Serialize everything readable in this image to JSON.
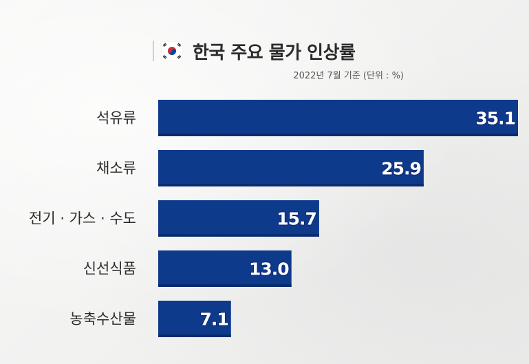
{
  "header": {
    "title": "한국 주요 물가 인상률",
    "subtitle": "2022년 7월 기준 (단위 : %)",
    "flag_icon": "korea-flag-icon"
  },
  "colors": {
    "bar": "#0e3a8c",
    "bar_shade": "#0a2c6e",
    "background": "#f3f3f2"
  },
  "chart_data": {
    "type": "bar",
    "orientation": "horizontal",
    "title": "한국 주요 물가 인상률",
    "subtitle": "2022년 7월 기준 (단위 : %)",
    "categories": [
      "석유류",
      "채소류",
      "전기 · 가스 · 수도",
      "신선식품",
      "농축수산물"
    ],
    "values": [
      35.1,
      25.9,
      15.7,
      13.0,
      7.1
    ],
    "value_labels": [
      "35.1",
      "25.9",
      "15.7",
      "13.0",
      "7.1"
    ],
    "xlim": [
      0,
      35.1
    ],
    "grid": false,
    "legend": "none"
  }
}
